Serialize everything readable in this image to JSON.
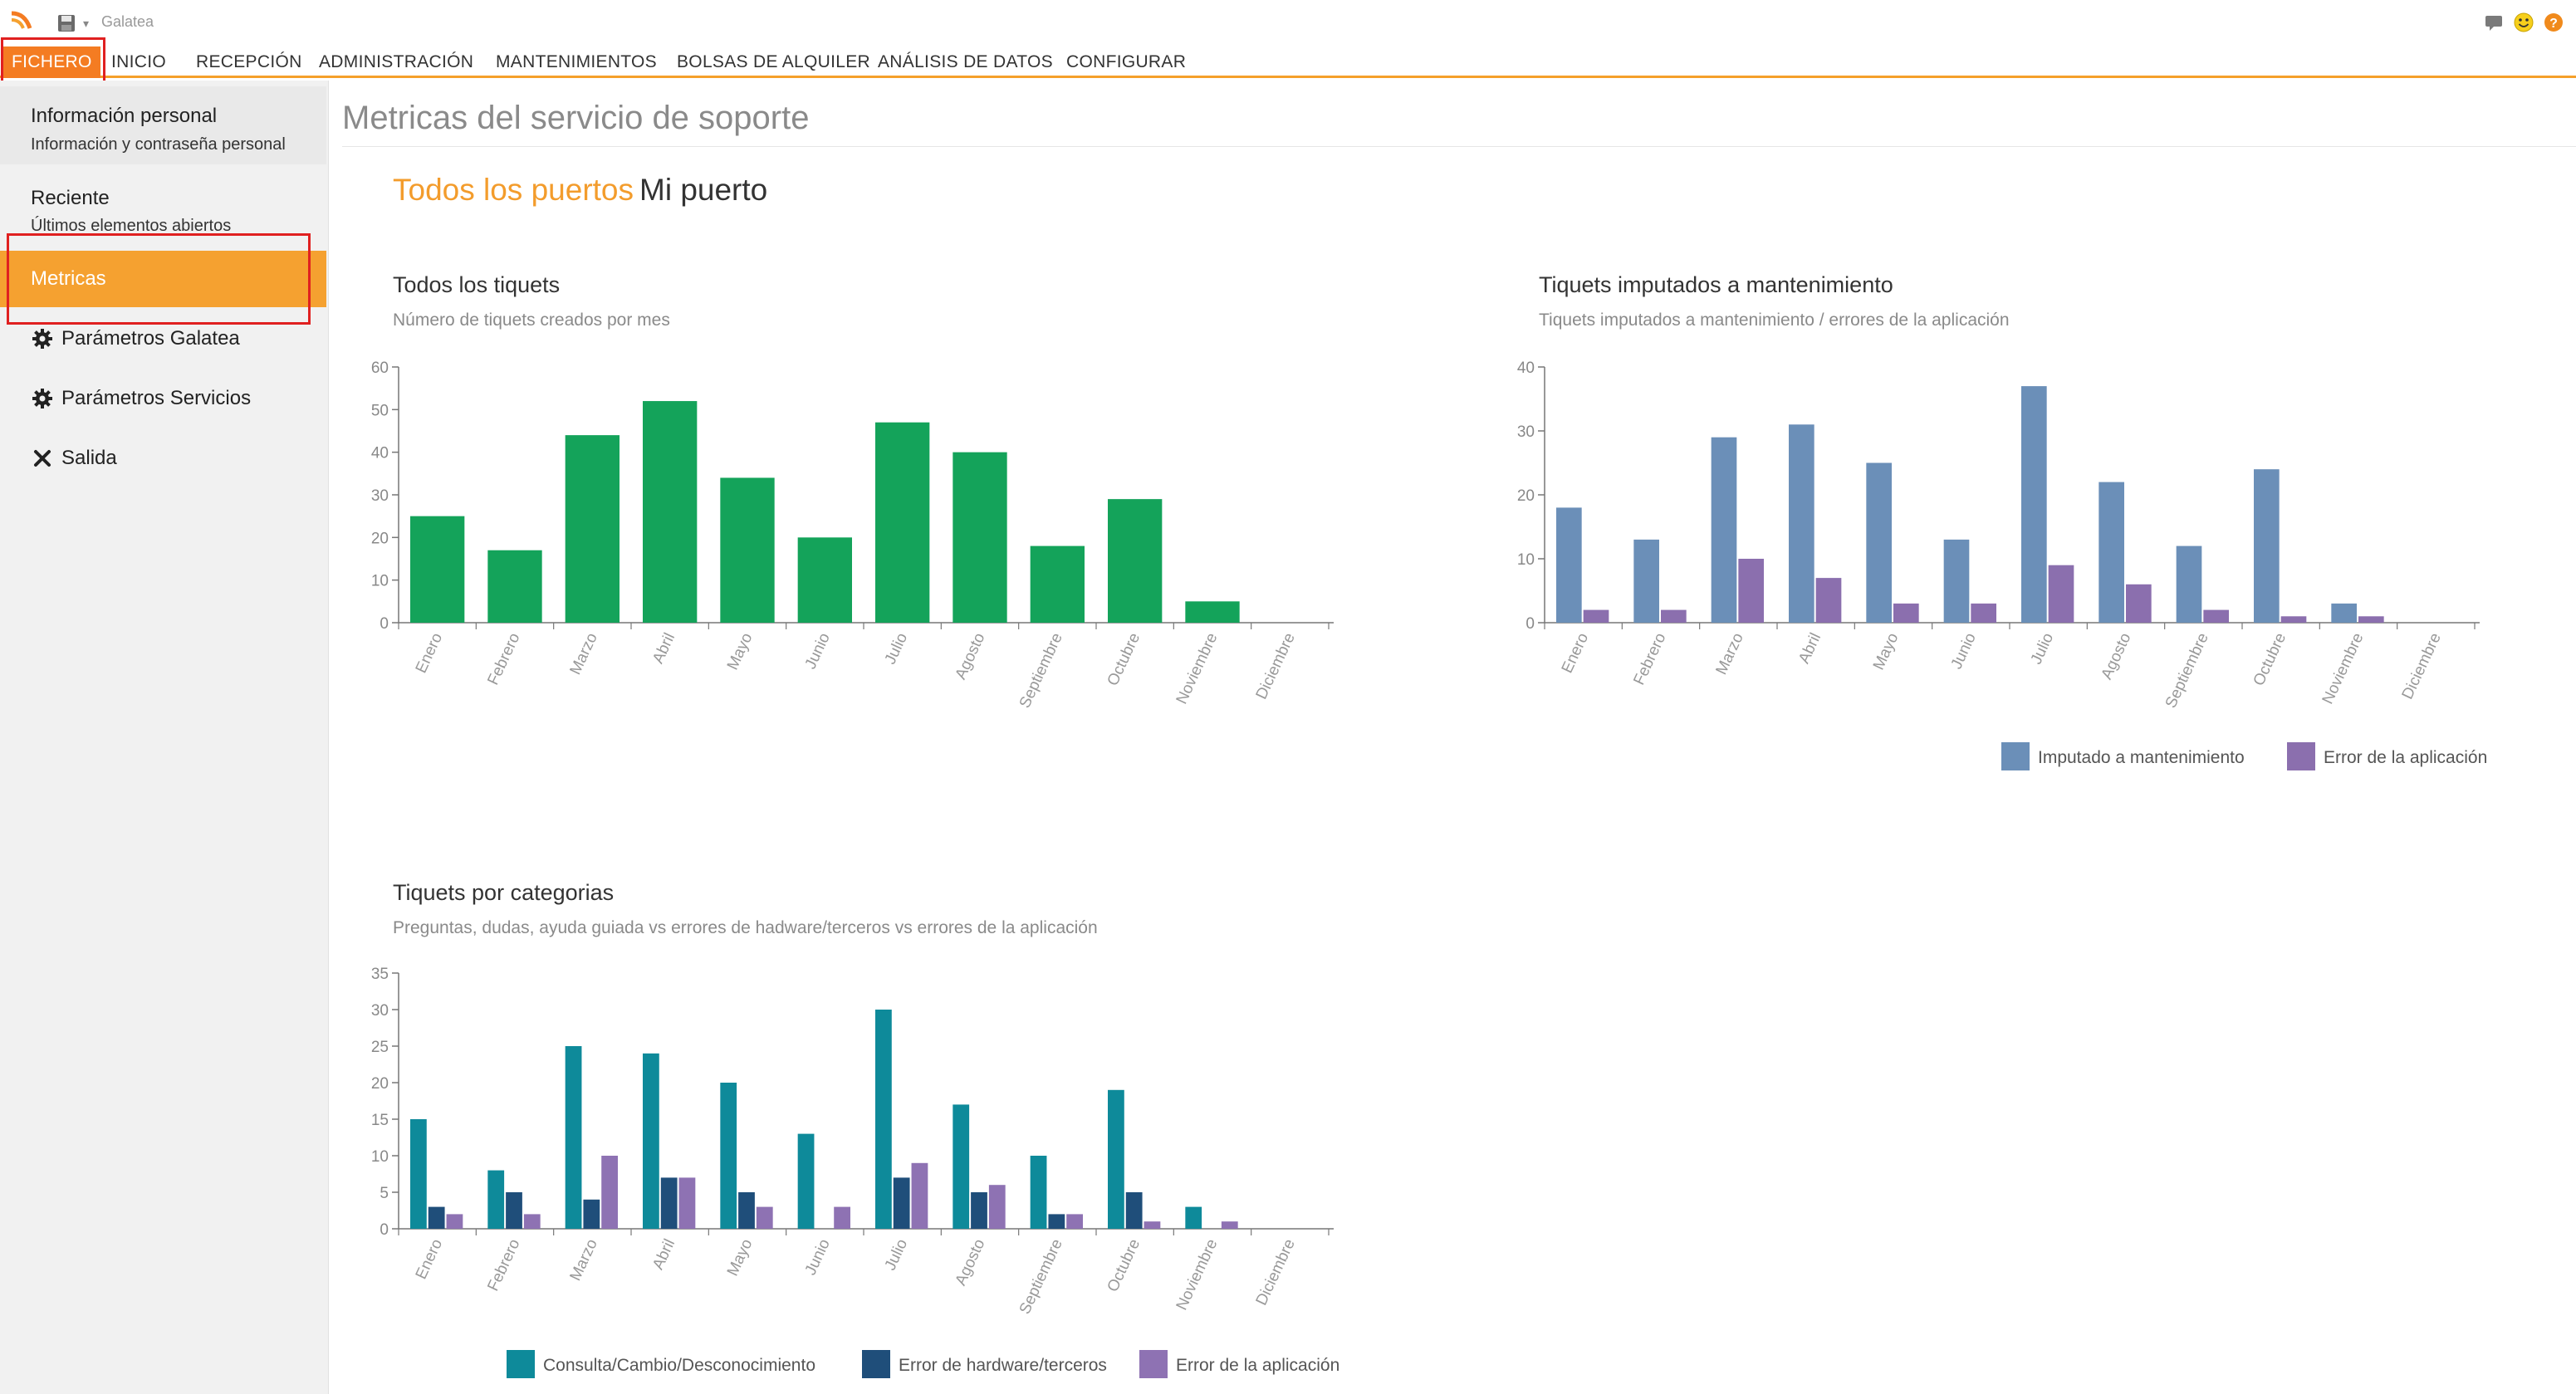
{
  "window": {
    "title": "Galatea"
  },
  "menu": {
    "items": [
      {
        "id": "fichero",
        "label": "FICHERO"
      },
      {
        "id": "inicio",
        "label": "INICIO"
      },
      {
        "id": "recepcion",
        "label": "RECEPCIÓN"
      },
      {
        "id": "administracion",
        "label": "ADMINISTRACIÓN"
      },
      {
        "id": "mantenimientos",
        "label": "MANTENIMIENTOS"
      },
      {
        "id": "bolsas",
        "label": "BOLSAS DE ALQUILER"
      },
      {
        "id": "analisis",
        "label": "ANÁLISIS DE DATOS"
      },
      {
        "id": "configurar",
        "label": "CONFIGURAR"
      }
    ],
    "active": "FICHERO"
  },
  "sidebar": {
    "items": [
      {
        "title": "Información personal",
        "subtitle": "Información y contraseña personal"
      },
      {
        "title": "Reciente",
        "subtitle": "Últimos elementos abiertos"
      },
      {
        "title": "Metricas",
        "selected": true
      },
      {
        "title": "Parámetros Galatea",
        "icon": "gear-icon"
      },
      {
        "title": "Parámetros Servicios",
        "icon": "gear-icon"
      },
      {
        "title": "Salida",
        "icon": "close-icon"
      }
    ]
  },
  "main": {
    "page_title": "Metricas del servicio de soporte",
    "tabs": [
      {
        "label": "Todos los puertos",
        "active": true
      },
      {
        "label": "Mi puerto",
        "active": false
      }
    ]
  },
  "colors": {
    "accent": "#f5a130",
    "menu_active": "#f47c22",
    "green": "#14a35a",
    "steel_blue": "#6b8fb8",
    "purple": "#8b6fae",
    "teal": "#0e8a9a",
    "navy": "#1f4e7a",
    "lavender": "#8e72b3"
  },
  "chart_data": [
    {
      "id": "todos",
      "type": "bar",
      "title": "Todos los tiquets",
      "subtitle": "Número de tiquets creados por mes",
      "categories": [
        "Enero",
        "Febrero",
        "Marzo",
        "Abril",
        "Mayo",
        "Junio",
        "Julio",
        "Agosto",
        "Septiembre",
        "Octubre",
        "Noviembre",
        "Diciembre"
      ],
      "series": [
        {
          "values": [
            25,
            17,
            44,
            52,
            34,
            20,
            47,
            40,
            18,
            29,
            5,
            0
          ],
          "color": "#14a35a"
        }
      ],
      "ylim": [
        0,
        60
      ],
      "yticks": [
        0,
        10,
        20,
        30,
        40,
        50,
        60
      ],
      "legend": false
    },
    {
      "id": "mantenimiento",
      "type": "bar",
      "title": "Tiquets imputados a mantenimiento",
      "subtitle": "Tiquets imputados a mantenimiento / errores de la aplicación",
      "categories": [
        "Enero",
        "Febrero",
        "Marzo",
        "Abril",
        "Mayo",
        "Junio",
        "Julio",
        "Agosto",
        "Septiembre",
        "Octubre",
        "Noviembre",
        "Diciembre"
      ],
      "series": [
        {
          "name": "Imputado a mantenimiento",
          "values": [
            18,
            13,
            29,
            31,
            25,
            13,
            37,
            22,
            12,
            24,
            3,
            0
          ],
          "color": "#6b8fb8"
        },
        {
          "name": "Error de la aplicación",
          "values": [
            2,
            2,
            10,
            7,
            3,
            3,
            9,
            6,
            2,
            1,
            1,
            0
          ],
          "color": "#8b6fae"
        }
      ],
      "ylim": [
        0,
        40
      ],
      "yticks": [
        0,
        10,
        20,
        30,
        40
      ],
      "legend": "bottom-right"
    },
    {
      "id": "categorias",
      "type": "bar",
      "title": "Tiquets por categorias",
      "subtitle": "Preguntas, dudas, ayuda guiada vs errores de hadware/terceros vs errores de la aplicación",
      "categories": [
        "Enero",
        "Febrero",
        "Marzo",
        "Abril",
        "Mayo",
        "Junio",
        "Julio",
        "Agosto",
        "Septiembre",
        "Octubre",
        "Noviembre",
        "Diciembre"
      ],
      "series": [
        {
          "name": "Consulta/Cambio/Desconocimiento",
          "values": [
            15,
            8,
            25,
            24,
            20,
            13,
            30,
            17,
            10,
            19,
            3,
            0
          ],
          "color": "#0e8a9a"
        },
        {
          "name": "Error de hardware/terceros",
          "values": [
            3,
            5,
            4,
            7,
            5,
            0,
            7,
            5,
            2,
            5,
            0,
            0
          ],
          "color": "#1f4e7a"
        },
        {
          "name": "Error de la aplicación",
          "values": [
            2,
            2,
            10,
            7,
            3,
            3,
            9,
            6,
            2,
            1,
            1,
            0
          ],
          "color": "#8e72b3"
        }
      ],
      "ylim": [
        0,
        35
      ],
      "yticks": [
        0,
        5,
        10,
        15,
        20,
        25,
        30,
        35
      ],
      "legend": "bottom"
    }
  ]
}
